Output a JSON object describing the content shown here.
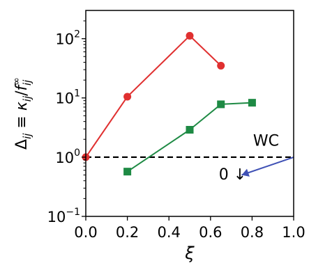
{
  "chart_data": {
    "type": "line",
    "title": "",
    "xlabel": "ξ",
    "ylabel": "Δ_ij ≡ κ_ij / f^∞_ij",
    "xlim": [
      0.0,
      1.0
    ],
    "ylim": [
      0.1,
      300
    ],
    "y_scale": "log",
    "grid": false,
    "x_ticks": [
      0.0,
      0.2,
      0.4,
      0.6,
      0.8,
      1.0
    ],
    "x_tick_labels": [
      "0.0",
      "0.2",
      "0.4",
      "0.6",
      "0.8",
      "1.0"
    ],
    "y_ticks": [
      0.1,
      1,
      10,
      100
    ],
    "y_tick_labels": [
      {
        "base": "10",
        "exp": "−1"
      },
      {
        "base": "10",
        "exp": "0"
      },
      {
        "base": "10",
        "exp": "1"
      },
      {
        "base": "10",
        "exp": "2"
      }
    ],
    "series": [
      {
        "color": "#e03030",
        "marker": "circle",
        "x": [
          0.0,
          0.2,
          0.5,
          0.65
        ],
        "y": [
          1.0,
          10.5,
          112,
          35
        ]
      },
      {
        "color": "#1e8a44",
        "marker": "square",
        "x": [
          0.2,
          0.5,
          0.65,
          0.8
        ],
        "y": [
          0.57,
          2.9,
          7.8,
          8.3
        ]
      },
      {
        "color": "#3f51b5",
        "marker": "triangle",
        "x": [
          1.0,
          0.75
        ],
        "y": [
          1.0,
          0.5
        ]
      }
    ],
    "reference_line": {
      "y": 1.0,
      "style": "dashed",
      "color": "#000000",
      "label": "WC"
    },
    "annotations": [
      {
        "text": "WC",
        "x": 0.805,
        "y": 1.55
      },
      {
        "text": "0 ↓",
        "x": 0.64,
        "y": 0.42
      }
    ]
  }
}
